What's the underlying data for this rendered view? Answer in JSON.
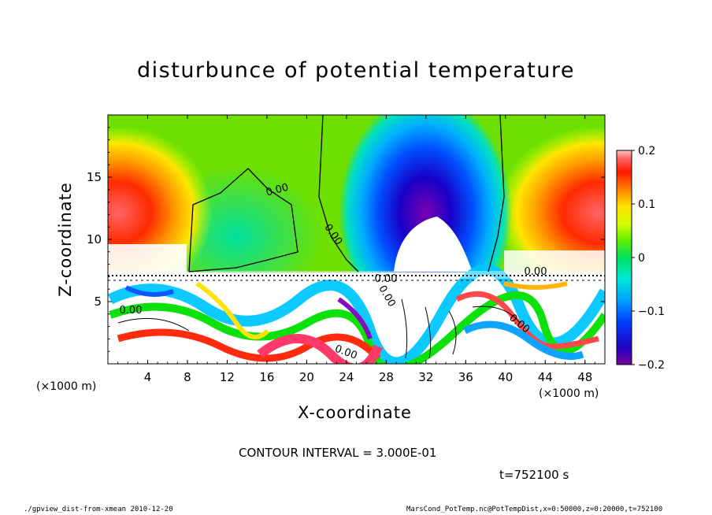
{
  "chart_data": {
    "type": "heatmap",
    "title": "disturbunce of potential temperature",
    "xlabel": "X-coordinate",
    "ylabel": "Z-coordinate",
    "x_unit_label": "(×1000 m)",
    "y_unit_label": "(×1000 m)",
    "xlim": [
      0,
      50
    ],
    "ylim": [
      0,
      20
    ],
    "x_ticks": [
      "4",
      "8",
      "12",
      "16",
      "20",
      "24",
      "28",
      "32",
      "36",
      "40",
      "44",
      "48"
    ],
    "y_ticks": [
      "5",
      "10",
      "15"
    ],
    "colorbar": {
      "range": [
        -0.2,
        0.2
      ],
      "tick_labels": [
        "0.2",
        "0.1",
        "0",
        "−0.1",
        "−0.2"
      ],
      "tick_values": [
        0.2,
        0.1,
        0,
        -0.1,
        -0.2
      ]
    },
    "contour_labels": [
      "0.00",
      "0.00",
      "0.00",
      "0.00",
      "0.00",
      "0.00",
      "0.00",
      "0.00"
    ],
    "features": [
      {
        "x": 3,
        "z": 12,
        "value": 0.16
      },
      {
        "x": 47,
        "z": 12,
        "value": 0.16
      },
      {
        "x": 14,
        "z": 12,
        "value": -0.02
      },
      {
        "x": 32,
        "z": 14,
        "value": -0.17
      }
    ],
    "contour_interval_text": "CONTOUR INTERVAL = 3.000E-01",
    "time_text": "t=752100 s"
  },
  "footer": {
    "left": "./gpview_dist-from-xmean   2010-12-20",
    "right": "MarsCond_PotTemp.nc@PotTempDist,x=0:50000,z=0:20000,t=752100"
  }
}
